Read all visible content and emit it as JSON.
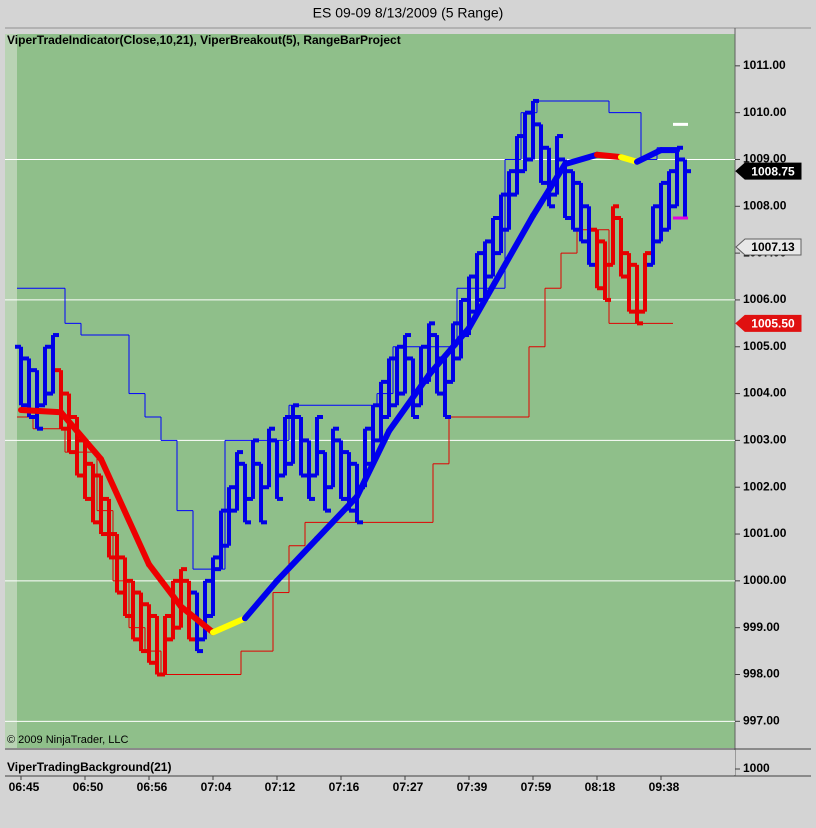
{
  "chart_data": {
    "type": "ohlc",
    "title": "ES 09-09  8/13/2009 (5 Range)",
    "subtitle": "ViperTradeIndicator(Close,10,21),  ViperBreakout(5),  RangeBarProject",
    "copyright": "© 2009 NinjaTrader, LLC",
    "categories": [
      "06:45",
      null,
      null,
      null,
      null,
      null,
      null,
      null,
      "06:50",
      null,
      null,
      null,
      null,
      null,
      null,
      null,
      "06:56",
      null,
      null,
      null,
      null,
      null,
      null,
      null,
      "07:04",
      null,
      null,
      null,
      null,
      null,
      null,
      null,
      "07:12",
      null,
      null,
      null,
      null,
      null,
      null,
      null,
      "07:16",
      null,
      null,
      null,
      null,
      null,
      null,
      null,
      "07:27",
      null,
      null,
      null,
      null,
      null,
      null,
      null,
      "07:39",
      null,
      null,
      null,
      null,
      null,
      null,
      null,
      "07:59",
      null,
      null,
      null,
      null,
      null,
      null,
      null,
      "08:18",
      null,
      null,
      null,
      null,
      null,
      null,
      null,
      "09:38",
      null,
      null,
      null
    ],
    "open": [
      1005,
      1004.75,
      1004.5,
      1003.75,
      1004,
      1004.5,
      1004,
      1003.5,
      1003,
      1002.5,
      1002.25,
      1001.75,
      1001,
      1000.5,
      1000,
      999.75,
      999.5,
      999.25,
      998,
      998.75,
      999,
      1000,
      999.75,
      998.75,
      999.25,
      1000.25,
      1000.75,
      1001.5,
      1002.5,
      1001.75,
      1002.5,
      1002,
      1003,
      1002.25,
      1002.5,
      1003.5,
      1003,
      1002.25,
      1002.75,
      1002,
      1003,
      1002.75,
      1002.5,
      1002,
      1002.5,
      1003,
      1003.5,
      1003.75,
      1004,
      1004.75,
      1003.75,
      1004.25,
      1005.25,
      1004.75,
      1004.25,
      1004.75,
      1005.25,
      1005.75,
      1006,
      1006.5,
      1007,
      1007.5,
      1008.25,
      1008.75,
      1009,
      1009.75,
      1009.25,
      1008.25,
      1009,
      1008.75,
      1008.5,
      1008,
      1007.5,
      1007.25,
      1006.75,
      1007.75,
      1007,
      1006.75,
      1005.75,
      1006.75,
      1007.25,
      1007.5,
      1008,
      1009
    ],
    "high": [
      1005,
      1004.75,
      1004.5,
      1005,
      1005.25,
      1004.5,
      1004,
      1003.5,
      1003,
      1002.5,
      1002.25,
      1001.75,
      1001,
      1000.5,
      1000,
      999.75,
      999.5,
      999.25,
      999.25,
      1000,
      1000.25,
      1000,
      999.75,
      1000,
      1000.5,
      1001.5,
      1002,
      1002.75,
      1002.5,
      1003,
      1002.5,
      1003.25,
      1003,
      1003.5,
      1003.75,
      1003.5,
      1003,
      1003.5,
      1002.75,
      1003.25,
      1003,
      1002.75,
      1002.5,
      1003.25,
      1003.75,
      1004.25,
      1004.75,
      1005,
      1005.25,
      1004.75,
      1005,
      1005.5,
      1005.25,
      1004.75,
      1005.5,
      1006,
      1006.5,
      1007,
      1007.25,
      1007.75,
      1008.25,
      1008.75,
      1009.5,
      1010,
      1010.25,
      1009.75,
      1009.25,
      1009.5,
      1009,
      1008.75,
      1008.5,
      1008,
      1007.5,
      1007.25,
      1008,
      1007.75,
      1007,
      1006.75,
      1007,
      1008,
      1008.5,
      1008.75,
      1009.25,
      1009
    ],
    "low": [
      1003.75,
      1003.5,
      1003.25,
      1003.75,
      1004,
      1003.25,
      1002.75,
      1002.25,
      1001.75,
      1001.25,
      1001,
      1000.5,
      999.75,
      999.25,
      998.75,
      998.5,
      998.25,
      998,
      998,
      998.75,
      999,
      998.75,
      998.5,
      998.75,
      999.25,
      1000.25,
      1000.75,
      1001.5,
      1001.25,
      1001.75,
      1001.25,
      1002,
      1001.75,
      1002.25,
      1002.5,
      1002.25,
      1001.75,
      1002.25,
      1001.5,
      1002,
      1001.75,
      1001.5,
      1001.25,
      1002,
      1002.5,
      1003,
      1003.5,
      1003.75,
      1004,
      1003.5,
      1003.75,
      1004.25,
      1004,
      1003.5,
      1004.25,
      1004.75,
      1005.25,
      1005.75,
      1006,
      1006.5,
      1007,
      1007.5,
      1008.25,
      1008.75,
      1009,
      1008.5,
      1008,
      1008.25,
      1007.75,
      1007.5,
      1007.25,
      1006.75,
      1006.25,
      1006,
      1006.75,
      1006.5,
      1005.75,
      1005.5,
      1005.75,
      1006.75,
      1007.25,
      1007.5,
      1008,
      1007.75
    ],
    "close": [
      1003.75,
      1003.5,
      1003.25,
      1005,
      1005.25,
      1003.25,
      1002.75,
      1002.25,
      1001.75,
      1001.25,
      1001,
      1000.5,
      999.75,
      999.25,
      998.75,
      998.5,
      998.25,
      998,
      999.25,
      1000,
      1000.25,
      998.75,
      998.5,
      1000,
      1000.5,
      1001.5,
      1002,
      1002.75,
      1001.25,
      1003,
      1001.25,
      1003.25,
      1001.75,
      1003.5,
      1003.75,
      1002.25,
      1001.75,
      1003.5,
      1001.5,
      1003.25,
      1001.75,
      1001.5,
      1001.25,
      1003.25,
      1003.75,
      1004.25,
      1004.75,
      1005,
      1005.25,
      1003.5,
      1005,
      1005.5,
      1004,
      1003.5,
      1005.5,
      1006,
      1006.5,
      1007,
      1007.25,
      1007.75,
      1008.25,
      1008.75,
      1009.5,
      1010,
      1010.25,
      1008.5,
      1008,
      1009.5,
      1007.75,
      1007.5,
      1007.25,
      1006.75,
      1006.25,
      1006,
      1008,
      1006.5,
      1005.75,
      1005.5,
      1007,
      1008,
      1008.5,
      1008.75,
      1009.25,
      1008.75
    ],
    "bar_colors": [
      "#0000e6",
      "#0000e6",
      "#0000e6",
      "#0000e6",
      "#0000e6",
      "#e60000",
      "#e60000",
      "#e60000",
      "#e60000",
      "#e60000",
      "#e60000",
      "#e60000",
      "#e60000",
      "#e60000",
      "#e60000",
      "#e60000",
      "#e60000",
      "#e60000",
      "#e60000",
      "#e60000",
      "#e60000",
      "#e60000",
      "#0000e6",
      "#0000e6",
      "#0000e6",
      "#0000e6",
      "#0000e6",
      "#0000e6",
      "#0000e6",
      "#0000e6",
      "#0000e6",
      "#0000e6",
      "#0000e6",
      "#0000e6",
      "#0000e6",
      "#0000e6",
      "#0000e6",
      "#0000e6",
      "#0000e6",
      "#0000e6",
      "#0000e6",
      "#0000e6",
      "#0000e6",
      "#0000e6",
      "#0000e6",
      "#0000e6",
      "#0000e6",
      "#0000e6",
      "#0000e6",
      "#0000e6",
      "#0000e6",
      "#0000e6",
      "#0000e6",
      "#0000e6",
      "#0000e6",
      "#0000e6",
      "#0000e6",
      "#0000e6",
      "#0000e6",
      "#0000e6",
      "#0000e6",
      "#0000e6",
      "#0000e6",
      "#0000e6",
      "#0000e6",
      "#0000e6",
      "#0000e6",
      "#0000e6",
      "#0000e6",
      "#0000e6",
      "#0000e6",
      "#0000e6",
      "#e60000",
      "#e60000",
      "#e60000",
      "#e60000",
      "#e60000",
      "#e60000",
      "#e60000",
      "#0000e6",
      "#0000e6",
      "#0000e6",
      "#0000e6",
      "#0000e6"
    ],
    "ylim": [
      996.43,
      1011.68
    ],
    "yticks": [
      {
        "value": 1011,
        "label": "1011.00"
      },
      {
        "value": 1010,
        "label": "1010.00"
      },
      {
        "value": 1009,
        "label": "1009.00"
      },
      {
        "value": 1008,
        "label": "1008.00"
      },
      {
        "value": 1007,
        "label": "1007.00"
      },
      {
        "value": 1006,
        "label": "1006.00"
      },
      {
        "value": 1005,
        "label": "1005.00"
      },
      {
        "value": 1004,
        "label": "1004.00"
      },
      {
        "value": 1003,
        "label": "1003.00"
      },
      {
        "value": 1002,
        "label": "1002.00"
      },
      {
        "value": 1001,
        "label": "1001.00"
      },
      {
        "value": 1000,
        "label": "1000.00"
      },
      {
        "value": 999,
        "label": "999.00"
      },
      {
        "value": 998,
        "label": "998.00"
      },
      {
        "value": 997,
        "label": "997.00"
      }
    ],
    "grid_lines": [
      1009,
      1006,
      1003,
      1000,
      997
    ],
    "overlays": [
      {
        "type": "step",
        "color": "#0000ff",
        "edges": [
          -0.5,
          5.5,
          7.5,
          13.5,
          15.5,
          17.5,
          19.5,
          21.5,
          25.5,
          33.5,
          44.5,
          46.5,
          54.5,
          60.5,
          62.5,
          64.5,
          73.5,
          77.5,
          79.5,
          82.5
        ],
        "values": [
          1006.25,
          1005.5,
          1005.25,
          1004,
          1003.5,
          1003,
          1001.5,
          1000.25,
          1003,
          1003.75,
          1004,
          1005,
          1006.25,
          1009,
          1010,
          1010.25,
          1010,
          1009,
          1009.25
        ]
      },
      {
        "type": "step",
        "color": "#e00000",
        "edges": [
          -0.5,
          1.5,
          5.5,
          9.5,
          11.5,
          13.5,
          15.5,
          17.5,
          27.5,
          31.5,
          33.5,
          35.5,
          51.5,
          53.5,
          63.5,
          65.5,
          67.5,
          69.5,
          73.5,
          81.5
        ],
        "values": [
          1003.5,
          1003.25,
          1002.75,
          1001.5,
          1000,
          999,
          998.5,
          998,
          998.5,
          999.75,
          1000.75,
          1001.25,
          1002.5,
          1003.5,
          1005,
          1006.25,
          1007,
          1007.5,
          1005.5
        ]
      },
      {
        "type": "line",
        "x": [
          0,
          5,
          10,
          16,
          20,
          24,
          28,
          32,
          37,
          42,
          46,
          51,
          56,
          60,
          64,
          68,
          72,
          75,
          77,
          80,
          82
        ],
        "values": [
          1003.65,
          1003.6,
          1002.6,
          1000.35,
          999.45,
          998.9,
          999.2,
          1000,
          1000.9,
          1001.8,
          1003.2,
          1004.4,
          1005.4,
          1006.6,
          1007.8,
          1008.9,
          1009.1,
          1009.05,
          1008.95,
          1009.2,
          1009.2
        ],
        "segment_colors": [
          "#ee0000",
          "#ee0000",
          "#ee0000",
          "#ee0000",
          "#ee0000",
          "#ffff00",
          "#0000ee",
          "#0000ee",
          "#0000ee",
          "#0000ee",
          "#0000ee",
          "#0000ee",
          "#0000ee",
          "#0000ee",
          "#0000ee",
          "#0000ee",
          "#ee0000",
          "#ffff00",
          "#0000ee",
          "#0000ee"
        ]
      }
    ],
    "markers": [
      {
        "value": 1009.75,
        "color": "#ffffff"
      },
      {
        "value": 1007.75,
        "color": "#e000e0"
      }
    ],
    "price_labels": [
      {
        "value": 1008.75,
        "bg": "#000000",
        "fg": "#ffffff",
        "border": "#000000"
      },
      {
        "value": 1007.13,
        "bg": "#e8e8e8",
        "fg": "#000000",
        "border": "#606060"
      },
      {
        "value": 1005.5,
        "label": "1005.50",
        "bg": "#e01010",
        "fg": "#ffffff",
        "border": "#e01010"
      }
    ],
    "lower_panel": {
      "title": "ViperTradingBackground(21)",
      "yticks": [
        1000
      ]
    }
  }
}
